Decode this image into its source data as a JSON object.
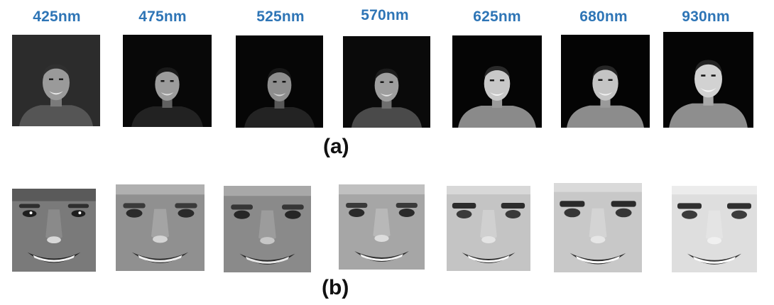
{
  "figure": {
    "wavelengths": [
      "425nm",
      "475nm",
      "525nm",
      "570nm",
      "625nm",
      "680nm",
      "930nm"
    ],
    "panel_labels": {
      "a": "(a)",
      "b": "(b)"
    },
    "row_a": {
      "content": "full-frame face photographs, one per wavelength",
      "background_levels": [
        "#2c2c2c",
        "#080808",
        "#060606",
        "#0a0a0a",
        "#050505",
        "#040404",
        "#050505"
      ],
      "face_levels": [
        "#9a9a9a",
        "#9c9c9c",
        "#8e8e8e",
        "#9e9e9e",
        "#c8c8c8",
        "#c4c4c4",
        "#d2d2d2"
      ],
      "shirt_levels": [
        "#555555",
        "#222222",
        "#232323",
        "#4a4a4a",
        "#8a8a8a",
        "#8c8c8c",
        "#8e8e8e"
      ]
    },
    "row_b": {
      "content": "cropped face close-ups, one per wavelength",
      "skin_levels": [
        "#7a7a7a",
        "#909090",
        "#8a8a8a",
        "#a6a6a6",
        "#c4c4c4",
        "#c8c8c8",
        "#dedede"
      ],
      "feature_levels": [
        "#1e1e1e",
        "#2a2a2a",
        "#262626",
        "#2a2a2a",
        "#2c2c2c",
        "#2a2a2a",
        "#303030"
      ]
    }
  }
}
